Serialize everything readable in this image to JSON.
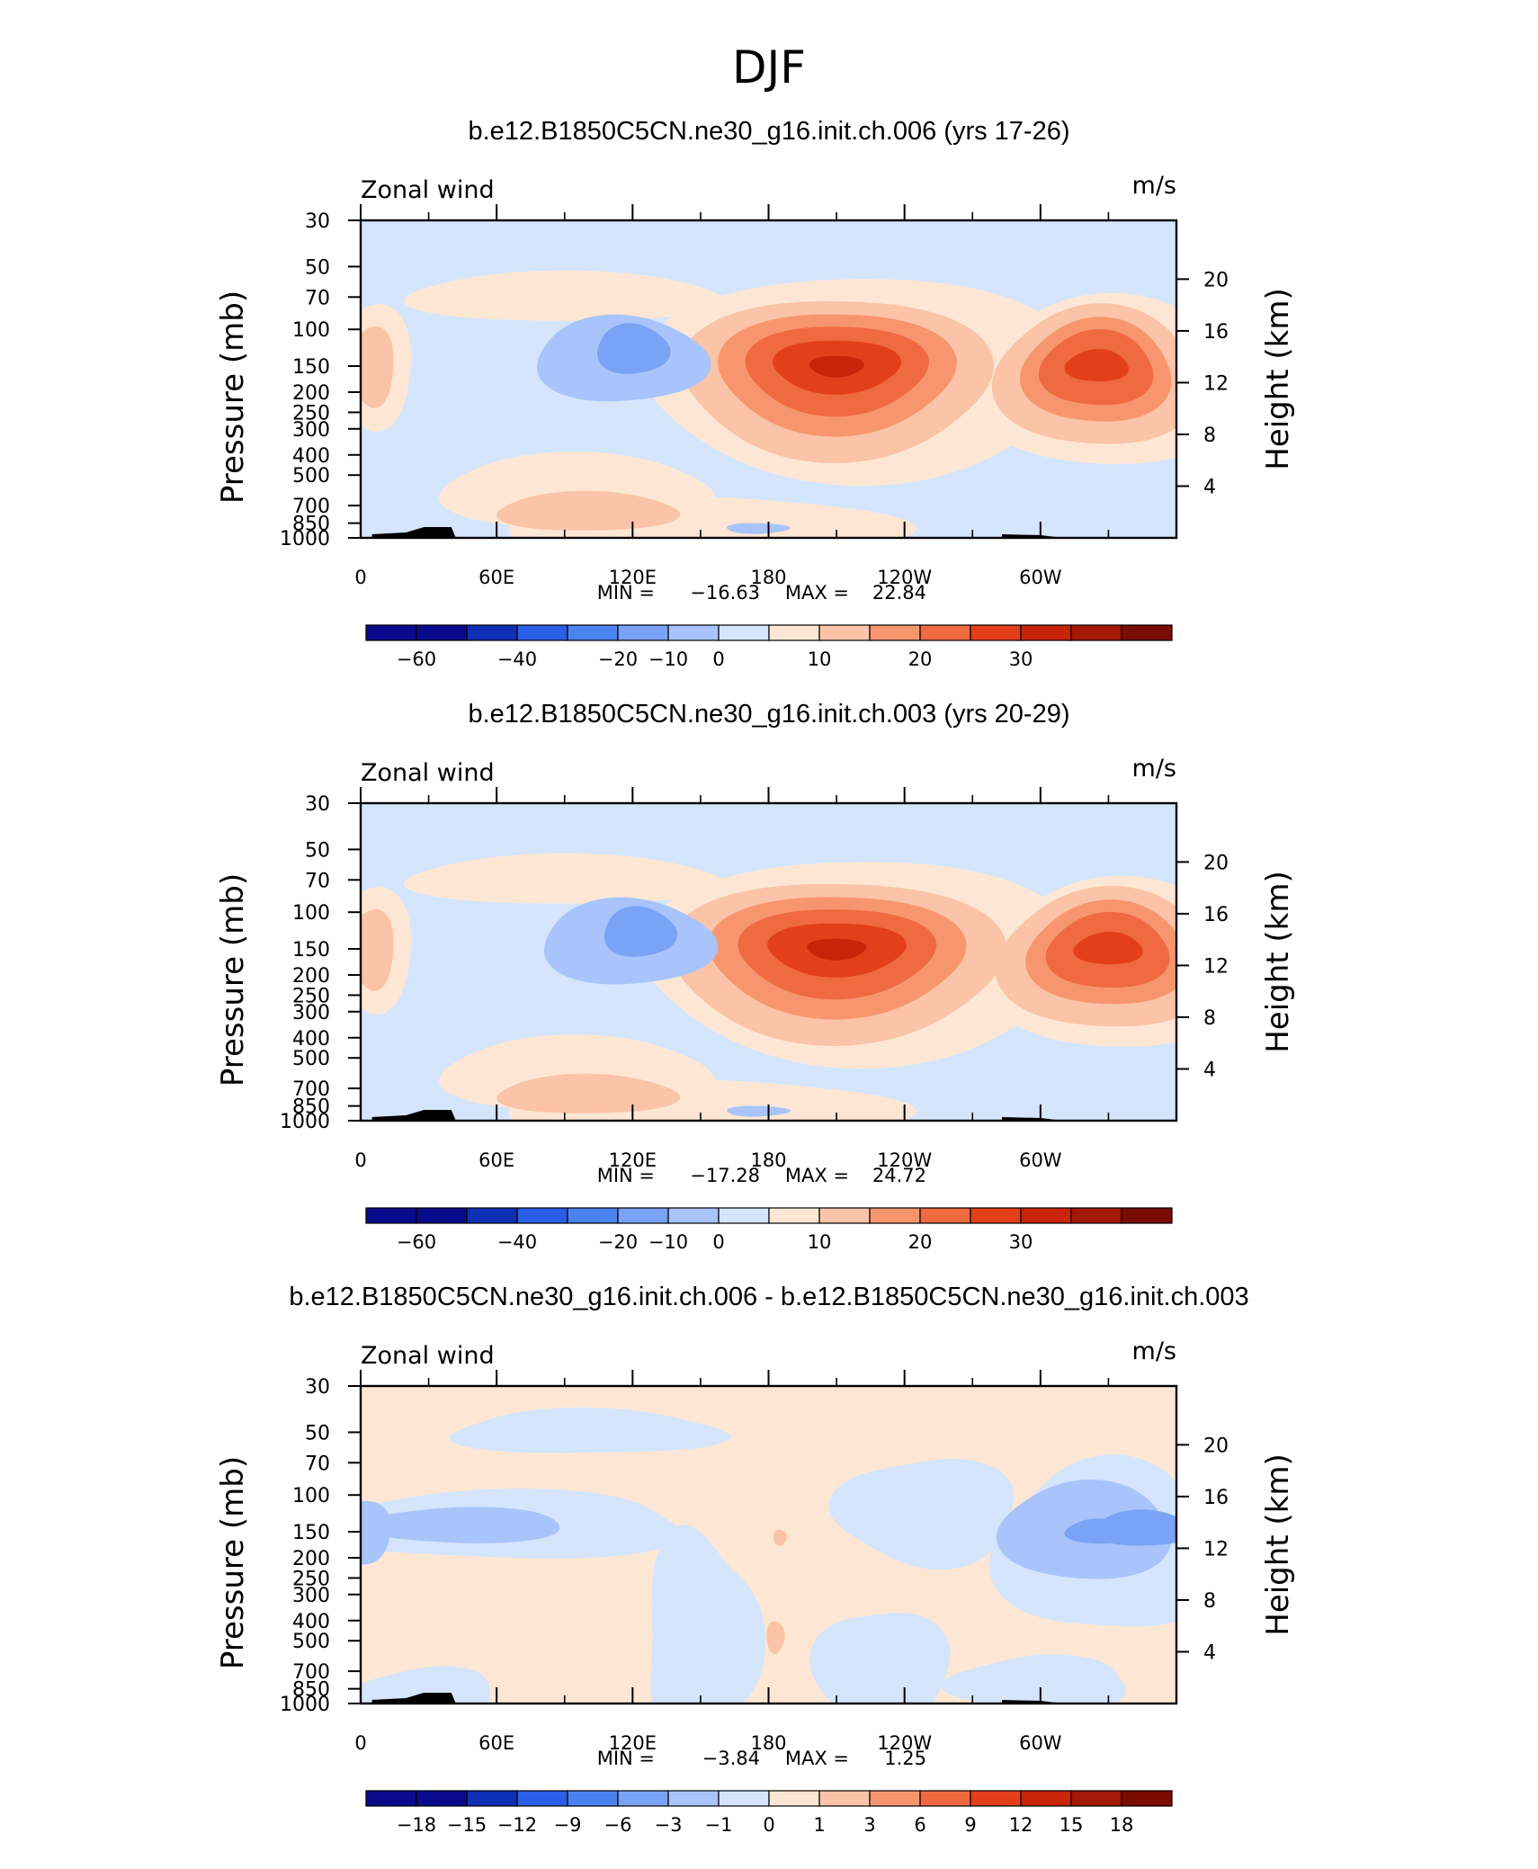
{
  "figure": {
    "title": "DJF"
  },
  "chart_data": [
    {
      "type": "heatmap",
      "title": "b.e12.B1850C5CN.ne30_g16.init.ch.006 (yrs 17-26)",
      "variable": "Zonal wind",
      "units": "m/s",
      "xlabel": "",
      "ylabel": "Pressure (mb)",
      "ylabel_right": "Height (km)",
      "x_ticks": [
        "0",
        "60E",
        "120E",
        "180",
        "120W",
        "60W"
      ],
      "y_ticks": [
        "30",
        "50",
        "70",
        "100",
        "150",
        "200",
        "250",
        "300",
        "400",
        "500",
        "700",
        "850",
        "1000"
      ],
      "y_right_ticks": [
        "20",
        "16",
        "12",
        "8",
        "4"
      ],
      "ylim": [
        1000,
        30
      ],
      "stats": {
        "min_label": "MIN =",
        "min": "−16.63",
        "max_label": "MAX =",
        "max": "22.84"
      },
      "colorbar_labels": [
        "−60",
        "−40",
        "−20",
        "−10",
        "0",
        "10",
        "20",
        "30"
      ],
      "features": [
        {
          "name": "jet-core-pacific",
          "lon": 210,
          "p": 150,
          "peak": 22.84
        },
        {
          "name": "jet-core-atlantic",
          "lon": 325,
          "p": 150,
          "peak": 20
        },
        {
          "name": "easterly-core-asia",
          "lon": 115,
          "p": 140,
          "peak": -16.63
        }
      ]
    },
    {
      "type": "heatmap",
      "title": "b.e12.B1850C5CN.ne30_g16.init.ch.003 (yrs 20-29)",
      "variable": "Zonal wind",
      "units": "m/s",
      "xlabel": "",
      "ylabel": "Pressure (mb)",
      "ylabel_right": "Height (km)",
      "x_ticks": [
        "0",
        "60E",
        "120E",
        "180",
        "120W",
        "60W"
      ],
      "y_ticks": [
        "30",
        "50",
        "70",
        "100",
        "150",
        "200",
        "250",
        "300",
        "400",
        "500",
        "700",
        "850",
        "1000"
      ],
      "y_right_ticks": [
        "20",
        "16",
        "12",
        "8",
        "4"
      ],
      "ylim": [
        1000,
        30
      ],
      "stats": {
        "min_label": "MIN =",
        "min": "−17.28",
        "max_label": "MAX =",
        "max": "24.72"
      },
      "colorbar_labels": [
        "−60",
        "−40",
        "−20",
        "−10",
        "0",
        "10",
        "20",
        "30"
      ],
      "features": [
        {
          "name": "jet-core-pacific",
          "lon": 210,
          "p": 150,
          "peak": 24.72
        },
        {
          "name": "jet-core-atlantic",
          "lon": 330,
          "p": 150,
          "peak": 22
        },
        {
          "name": "easterly-core-asia",
          "lon": 118,
          "p": 140,
          "peak": -17.28
        }
      ]
    },
    {
      "type": "heatmap",
      "title": "b.e12.B1850C5CN.ne30_g16.init.ch.006 - b.e12.B1850C5CN.ne30_g16.init.ch.003",
      "variable": "Zonal wind",
      "units": "m/s",
      "xlabel": "",
      "ylabel": "Pressure (mb)",
      "ylabel_right": "Height (km)",
      "x_ticks": [
        "0",
        "60E",
        "120E",
        "180",
        "120W",
        "60W"
      ],
      "y_ticks": [
        "30",
        "50",
        "70",
        "100",
        "150",
        "200",
        "250",
        "300",
        "400",
        "500",
        "700",
        "850",
        "1000"
      ],
      "y_right_ticks": [
        "20",
        "16",
        "12",
        "8",
        "4"
      ],
      "ylim": [
        1000,
        30
      ],
      "stats": {
        "min_label": "MIN =",
        "min": "−3.84",
        "max_label": "MAX =",
        "max": "1.25"
      },
      "colorbar_labels": [
        "−18",
        "−15",
        "−12",
        "−9",
        "−6",
        "−3",
        "−1",
        "0",
        "1",
        "3",
        "6",
        "9",
        "12",
        "15",
        "18"
      ],
      "features": [
        {
          "name": "negative-core-atlantic",
          "lon": 335,
          "p": 150,
          "peak": -3.84
        },
        {
          "name": "negative-band-greenwich",
          "lon": 0,
          "p": 150,
          "peak": -3
        },
        {
          "name": "positive-spot-dateline",
          "lon": 185,
          "p": 160,
          "peak": 1.25
        }
      ]
    }
  ],
  "colors": {
    "palette": [
      "#0a0a8c",
      "#0f2fb4",
      "#2a5ee6",
      "#4a82f0",
      "#7aa2f5",
      "#a8c4fa",
      "#d4e5fc",
      "#fde7d4",
      "#fbc3a7",
      "#f7966e",
      "#ef6a41",
      "#e33f1b",
      "#c8240a",
      "#a41806",
      "#7a0c04"
    ],
    "background_negative": "#d4e5fc",
    "background_positive": "#fde7d4",
    "topography": "#000000"
  }
}
